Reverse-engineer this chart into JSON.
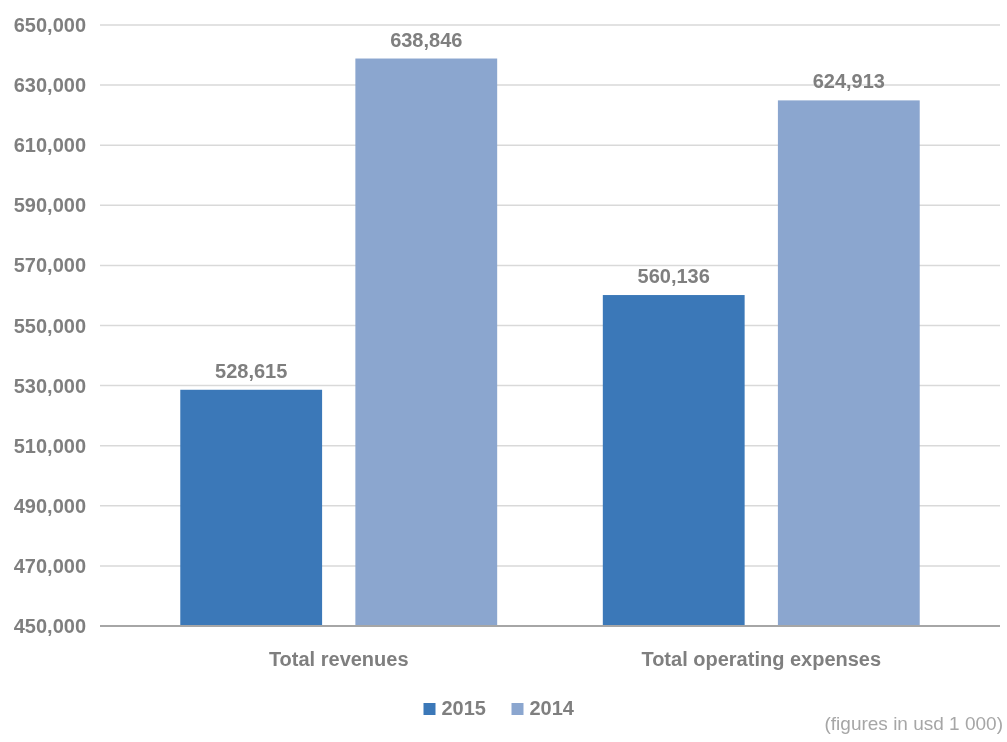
{
  "chart_data": {
    "type": "bar",
    "categories": [
      "Total revenues",
      "Total operating expenses"
    ],
    "series": [
      {
        "name": "2015",
        "color": "#3b78b8",
        "values": [
          528615,
          560136
        ],
        "value_labels": [
          "528,615",
          "560,136"
        ]
      },
      {
        "name": "2014",
        "color": "#8ba6cf",
        "values": [
          638846,
          624913
        ],
        "value_labels": [
          "638,846",
          "624,913"
        ]
      }
    ],
    "ylim": [
      450000,
      650000
    ],
    "yticks": [
      {
        "value": 450000,
        "label": "450,000"
      },
      {
        "value": 470000,
        "label": "470,000"
      },
      {
        "value": 490000,
        "label": "490,000"
      },
      {
        "value": 510000,
        "label": "510,000"
      },
      {
        "value": 530000,
        "label": "530,000"
      },
      {
        "value": 550000,
        "label": "550,000"
      },
      {
        "value": 570000,
        "label": "570,000"
      },
      {
        "value": 590000,
        "label": "590,000"
      },
      {
        "value": 610000,
        "label": "610,000"
      },
      {
        "value": 630000,
        "label": "630,000"
      },
      {
        "value": 650000,
        "label": "650,000"
      }
    ],
    "grid": "y",
    "legend": "bottom",
    "annotations": [
      "(figures in usd 1 000)"
    ]
  }
}
